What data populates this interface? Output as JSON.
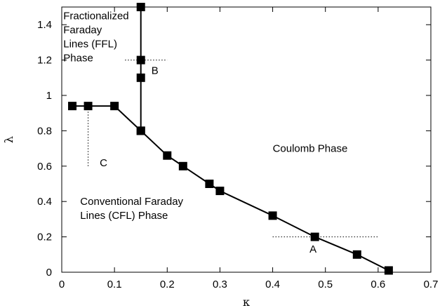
{
  "chart_data": {
    "type": "line",
    "title": "",
    "xlabel": "κ",
    "ylabel": "λ",
    "xlim": [
      0,
      0.7
    ],
    "ylim": [
      0,
      1.5
    ],
    "xticks": [
      "0",
      "0.1",
      "0.2",
      "0.3",
      "0.4",
      "0.5",
      "0.6",
      "0.7"
    ],
    "yticks": [
      "0",
      "0.2",
      "0.4",
      "0.6",
      "0.8",
      "1",
      "1.2",
      "1.4"
    ],
    "grid": false,
    "legend": "none",
    "series": [
      {
        "points": [
          {
            "x": 0.02,
            "y": 0.94
          },
          {
            "x": 0.05,
            "y": 0.94
          },
          {
            "x": 0.1,
            "y": 0.94
          },
          {
            "x": 0.15,
            "y": 0.8
          },
          {
            "x": 0.2,
            "y": 0.66
          },
          {
            "x": 0.23,
            "y": 0.6
          },
          {
            "x": 0.28,
            "y": 0.5
          },
          {
            "x": 0.3,
            "y": 0.46
          },
          {
            "x": 0.4,
            "y": 0.32
          },
          {
            "x": 0.48,
            "y": 0.2
          },
          {
            "x": 0.56,
            "y": 0.1
          },
          {
            "x": 0.62,
            "y": 0.01
          }
        ]
      },
      {
        "points": [
          {
            "x": 0.15,
            "y": 0.8
          },
          {
            "x": 0.15,
            "y": 1.1
          },
          {
            "x": 0.15,
            "y": 1.2
          },
          {
            "x": 0.15,
            "y": 1.5
          }
        ]
      }
    ],
    "dotted_lines": [
      {
        "from": [
          0.05,
          0.6
        ],
        "to": [
          0.05,
          0.94
        ]
      },
      {
        "from": [
          0.4,
          0.2
        ],
        "to": [
          0.6,
          0.2
        ]
      },
      {
        "from": [
          0.12,
          1.2
        ],
        "to": [
          0.2,
          1.2
        ]
      }
    ],
    "region_labels": [
      {
        "lines": [
          "Fractionalized",
          "Faraday",
          "Lines (FFL)",
          "Phase"
        ],
        "x": 0.003,
        "y": 1.43
      },
      {
        "lines": [
          "Coulomb Phase"
        ],
        "x": 0.4,
        "y": 0.68
      },
      {
        "lines": [
          "Conventional Faraday",
          "Lines (CFL) Phase"
        ],
        "x": 0.035,
        "y": 0.38
      }
    ],
    "point_labels": [
      {
        "text": "A",
        "x": 0.47,
        "y": 0.13
      },
      {
        "text": "B",
        "x": 0.17,
        "y": 1.14
      },
      {
        "text": "C",
        "x": 0.072,
        "y": 0.62
      }
    ],
    "colors": {
      "line": "#000000",
      "marker": "#000000",
      "frame": "#000000"
    }
  }
}
